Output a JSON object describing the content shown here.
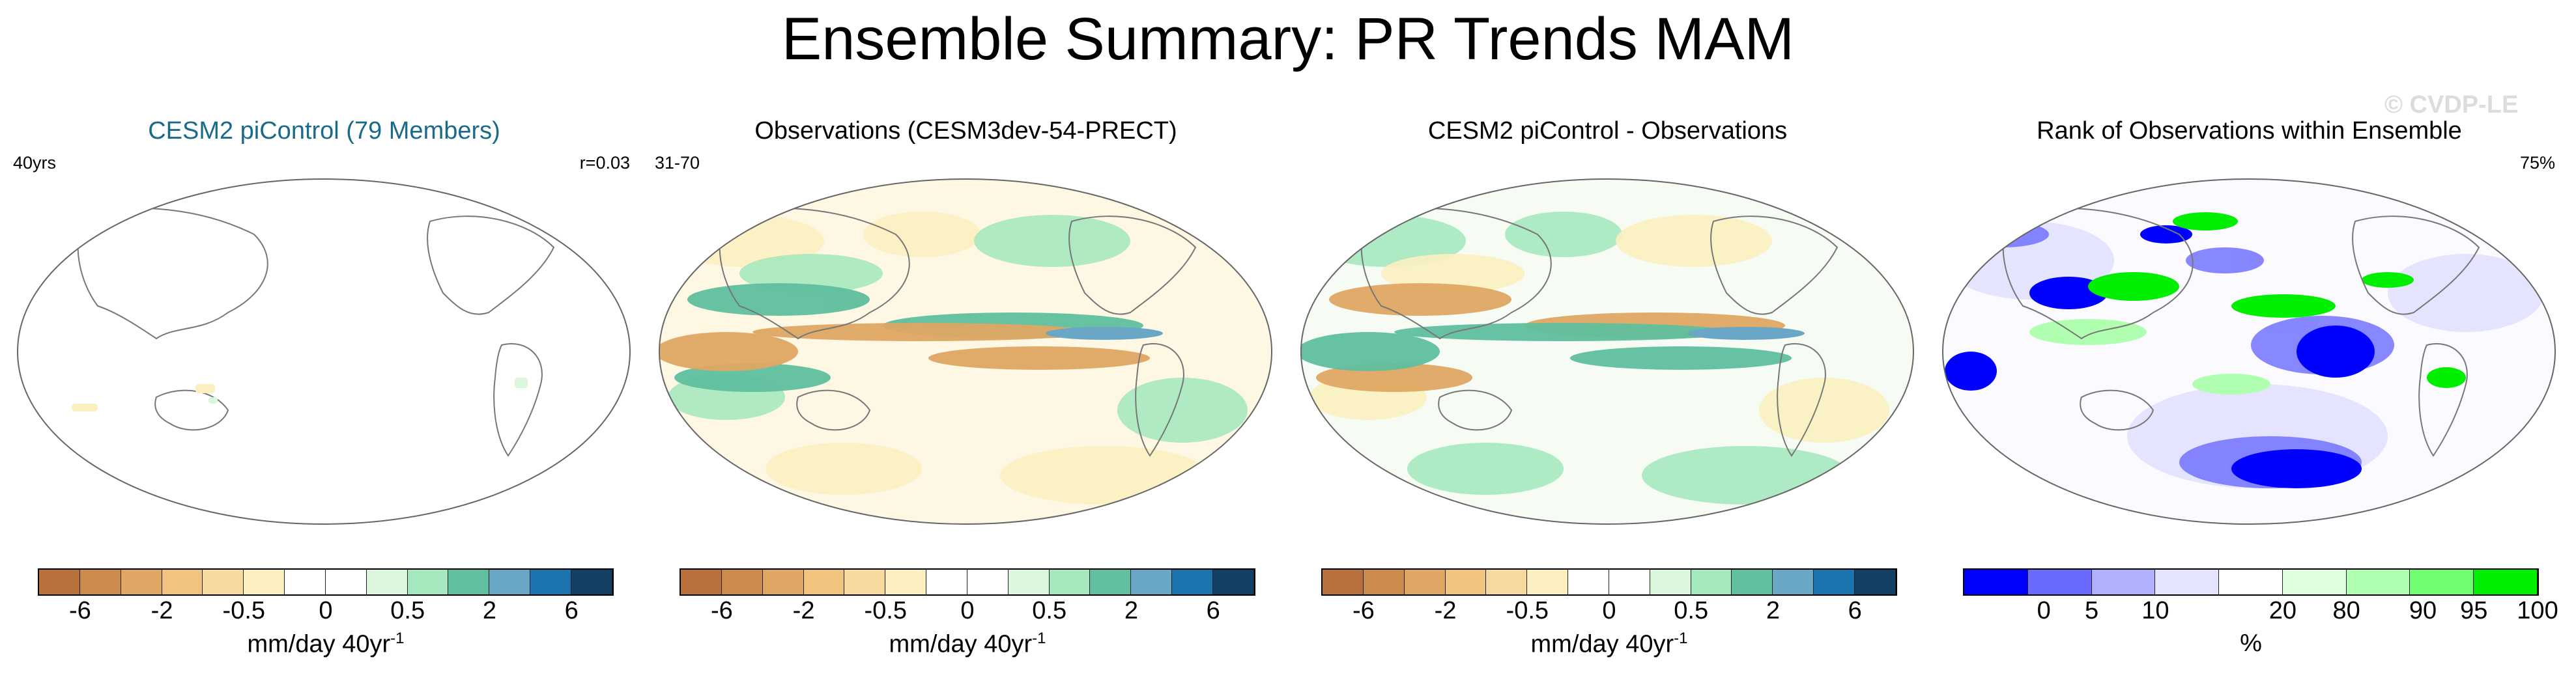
{
  "title": "Ensemble Summary: PR Trends MAM",
  "watermark": "© CVDP-LE",
  "panels": [
    {
      "title": "CESM2 piControl (79 Members)",
      "left_label": "40yrs",
      "right_label": "r=0.03",
      "title_color": "#1a6a8c"
    },
    {
      "title": "Observations (CESM3dev-54-PRECT)",
      "left_label": "31-70",
      "right_label": "",
      "title_color": "#000000"
    },
    {
      "title": "CESM2 piControl - Observations",
      "left_label": "",
      "right_label": "",
      "title_color": "#000000"
    },
    {
      "title": "Rank of Observations within Ensemble",
      "left_label": "",
      "right_label": "75%",
      "title_color": "#000000"
    }
  ],
  "colorbar_trend": {
    "labels": [
      "-6",
      "-2",
      "-0.5",
      "0",
      "0.5",
      "2",
      "6"
    ],
    "units": "mm/day 40yr",
    "units_sup": "-1",
    "colors": [
      "#b8713a",
      "#cd8a4d",
      "#dfa763",
      "#f0c47f",
      "#f6da9e",
      "#fbefc0",
      "#ffffff",
      "#ffffff",
      "#dbf6dc",
      "#a6e8be",
      "#5fbf9e",
      "#6aa6c6",
      "#1d73ad",
      "#123f64"
    ]
  },
  "colorbar_rank": {
    "labels": [
      "0",
      "5",
      "10",
      "20",
      "80",
      "90",
      "95",
      "100"
    ],
    "units": "%",
    "colors": [
      "#0000ff",
      "#6a6aff",
      "#b0b0ff",
      "#e4e4ff",
      "#ffffff",
      "#e0ffe0",
      "#b0ffb0",
      "#70ff70",
      "#00ee00"
    ]
  }
}
